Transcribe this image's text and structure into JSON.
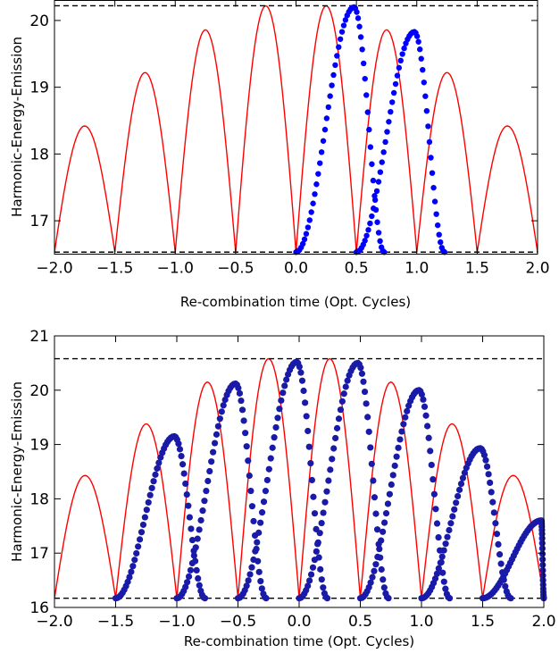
{
  "chart_data": [
    {
      "type": "line+scatter",
      "xlabel": "Re-combination time (Opt. Cycles)",
      "ylabel": "Harmonic-Energy-Emission",
      "xlim": [
        -2.0,
        2.0
      ],
      "ylim": [
        16.5,
        20.3
      ],
      "x_ticks": [
        "−2.0",
        "−1.5",
        "−1.0",
        "−0.5",
        "0.0",
        "0.5",
        "1.0",
        "1.5",
        "2.0"
      ],
      "y_ticks": [
        {
          "v": 17,
          "label": "17"
        },
        {
          "v": 18,
          "label": "18"
        },
        {
          "v": 19,
          "label": "19"
        },
        {
          "v": 20,
          "label": "20"
        }
      ],
      "hlines": [
        16.53,
        20.22
      ],
      "envelope": {
        "color": "#ff0000",
        "nodes": [
          -2.0,
          -1.5,
          -1.0,
          -0.5,
          0.0,
          0.5,
          1.0,
          1.5,
          2.0
        ],
        "peaks": [
          18.42,
          19.22,
          19.86,
          20.22,
          20.22,
          19.86,
          19.22,
          18.42
        ],
        "base": 16.53
      },
      "dots": {
        "color": "#0000ff",
        "humps": [
          {
            "x_start": 0.0,
            "peak_x": 0.48,
            "x_end": 0.73,
            "peak": 20.2
          },
          {
            "x_start": 0.5,
            "peak_x": 0.98,
            "x_end": 1.23,
            "peak": 19.83
          }
        ],
        "base": 16.53
      }
    },
    {
      "type": "line+scatter",
      "xlabel": "Re-combination time (Opt. Cycles)",
      "ylabel": "Harmonic-Energy-Emission",
      "xlim": [
        -2.0,
        2.0
      ],
      "ylim": [
        16.0,
        21.0
      ],
      "x_ticks": [
        "−2.0",
        "−1.5",
        "−1.0",
        "−0.5",
        "0.0",
        "0.5",
        "1.0",
        "1.5",
        "2.0"
      ],
      "y_ticks": [
        {
          "v": 16,
          "label": "16"
        },
        {
          "v": 17,
          "label": "17"
        },
        {
          "v": 18,
          "label": "18"
        },
        {
          "v": 19,
          "label": "19"
        },
        {
          "v": 20,
          "label": "20"
        },
        {
          "v": 21,
          "label": "21"
        }
      ],
      "hlines": [
        16.17,
        20.58
      ],
      "envelope": {
        "color": "#ff0000",
        "nodes": [
          -2.0,
          -1.5,
          -1.0,
          -0.5,
          0.0,
          0.5,
          1.0,
          1.5,
          2.0
        ],
        "peaks": [
          18.43,
          19.38,
          20.15,
          20.58,
          20.58,
          20.15,
          19.38,
          18.43
        ],
        "base": 16.17
      },
      "dots": {
        "color": "#1a1aa8",
        "humps": [
          {
            "x_start": -1.5,
            "peak_x": -1.02,
            "x_end": -0.77,
            "peak": 19.15
          },
          {
            "x_start": -1.0,
            "peak_x": -0.52,
            "x_end": -0.27,
            "peak": 20.12
          },
          {
            "x_start": -0.5,
            "peak_x": -0.02,
            "x_end": 0.23,
            "peak": 20.52
          },
          {
            "x_start": 0.0,
            "peak_x": 0.48,
            "x_end": 0.73,
            "peak": 20.5
          },
          {
            "x_start": 0.5,
            "peak_x": 0.98,
            "x_end": 1.23,
            "peak": 20.0
          },
          {
            "x_start": 1.0,
            "peak_x": 1.48,
            "x_end": 1.73,
            "peak": 18.93
          },
          {
            "x_start": 1.5,
            "peak_x": 1.98,
            "x_end": 2.0,
            "peak": 17.6
          }
        ],
        "base": 16.17
      }
    }
  ]
}
